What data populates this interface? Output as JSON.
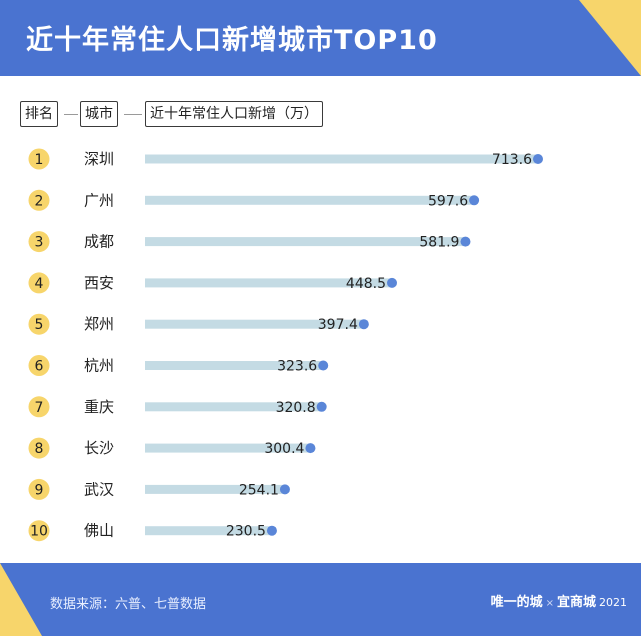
{
  "header": {
    "title": "近十年常住人口新增城市TOP10"
  },
  "columns": {
    "rank": "排名",
    "city": "城市",
    "value": "近十年常住人口新增（万）"
  },
  "chart_data": {
    "type": "bar",
    "orientation": "horizontal",
    "title": "近十年常住人口新增城市TOP10",
    "xlabel": "近十年常住人口新增（万）",
    "ylabel": "城市",
    "ranks": [
      "1",
      "2",
      "3",
      "4",
      "5",
      "6",
      "7",
      "8",
      "9",
      "10"
    ],
    "categories": [
      "深圳",
      "广州",
      "成都",
      "西安",
      "郑州",
      "杭州",
      "重庆",
      "长沙",
      "武汉",
      "佛山"
    ],
    "values": [
      713.6,
      597.6,
      581.9,
      448.5,
      397.4,
      323.6,
      320.8,
      300.4,
      254.1,
      230.5
    ],
    "value_labels": [
      "713.6",
      "597.6",
      "581.9",
      "448.5",
      "397.4",
      "323.6",
      "320.8",
      "300.4",
      "254.1",
      "230.5"
    ],
    "xlim": [
      0,
      713.6
    ],
    "grid": false,
    "legend": "none",
    "colors": {
      "bar": "#c4dbe4",
      "dot": "#5a86d8",
      "rank_circle": "#f7d56b"
    }
  },
  "footer": {
    "source": "数据来源：六普、七普数据",
    "brand_left": "唯一的城",
    "brand_sep": "×",
    "brand_right": "宜商城",
    "brand_year": "2021"
  },
  "colors": {
    "header_bg": "#4a73d0",
    "accent": "#f7d56b"
  }
}
